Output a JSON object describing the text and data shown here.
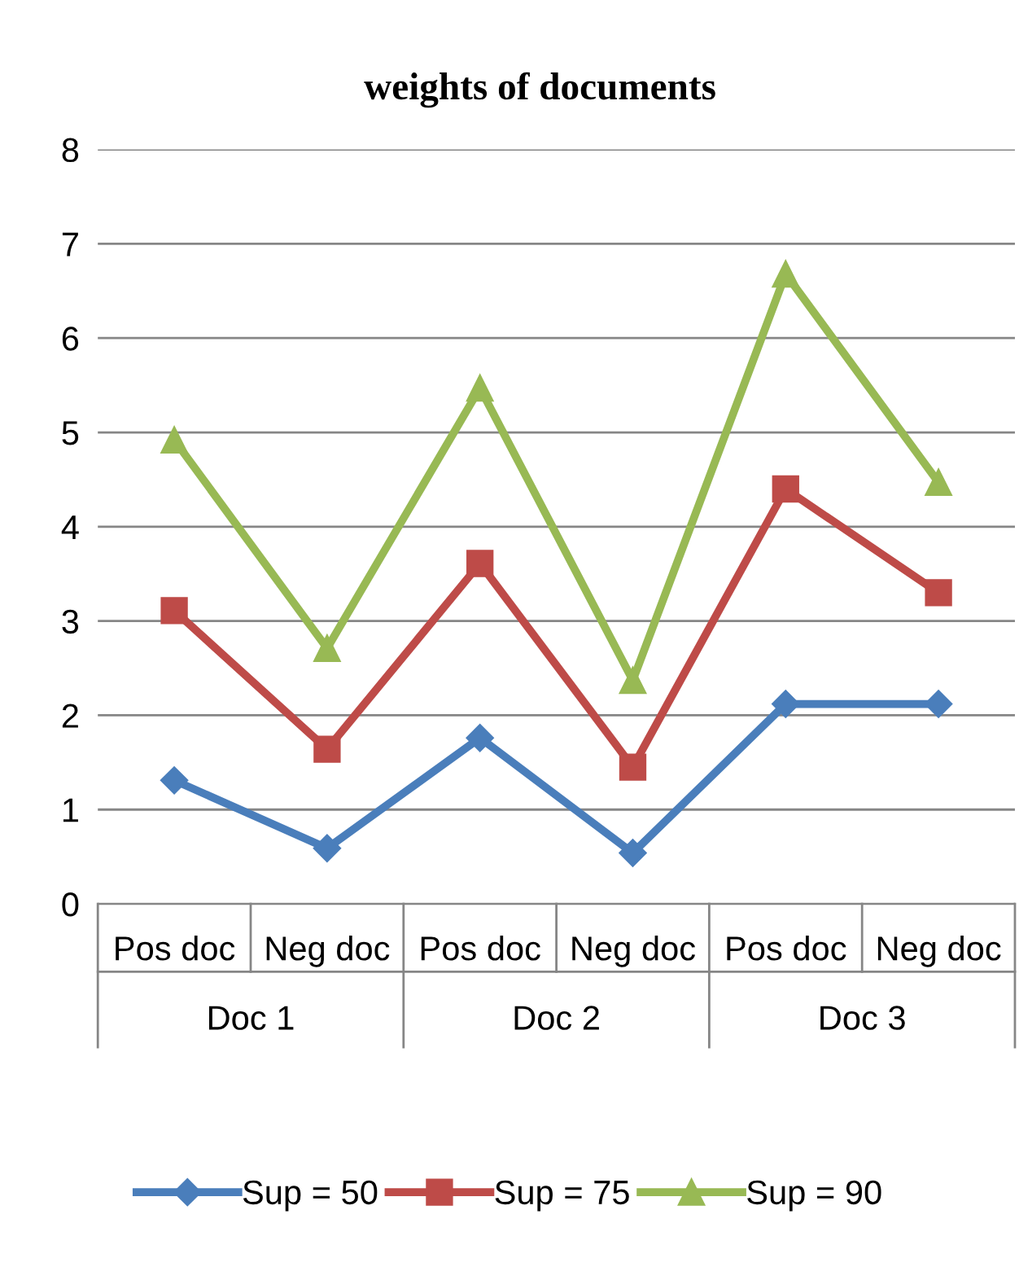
{
  "chart_data": {
    "type": "line",
    "title": "weights of documents",
    "categories": [
      "Pos doc",
      "Neg doc",
      "Pos doc",
      "Neg doc",
      "Pos doc",
      "Neg doc"
    ],
    "annotations": [
      "Doc 1",
      "Doc 2",
      "Doc 3"
    ],
    "series": [
      {
        "name": "Sup = 50",
        "color": "#4a7ebb",
        "marker": "diamond",
        "values": [
          1.31,
          0.59,
          1.76,
          0.54,
          2.12,
          2.12
        ]
      },
      {
        "name": "Sup = 75",
        "color": "#be4b48",
        "marker": "square",
        "values": [
          3.11,
          1.64,
          3.61,
          1.45,
          4.4,
          3.3
        ]
      },
      {
        "name": "Sup = 90",
        "color": "#98b954",
        "marker": "triangle",
        "values": [
          4.92,
          2.71,
          5.47,
          2.37,
          6.68,
          4.47
        ]
      }
    ],
    "ylim": [
      0,
      8
    ],
    "yticks": [
      0,
      1,
      2,
      3,
      4,
      5,
      6,
      7,
      8
    ],
    "grid": "y",
    "legend": "bottom",
    "line_style": "solid"
  }
}
